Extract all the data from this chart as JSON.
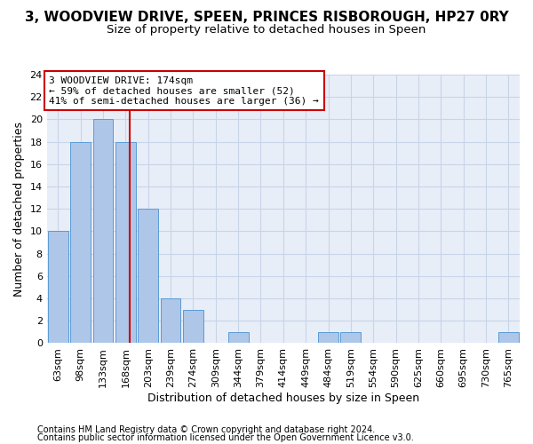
{
  "title": "3, WOODVIEW DRIVE, SPEEN, PRINCES RISBOROUGH, HP27 0RY",
  "subtitle": "Size of property relative to detached houses in Speen",
  "xlabel": "Distribution of detached houses by size in Speen",
  "ylabel": "Number of detached properties",
  "categories": [
    "63sqm",
    "98sqm",
    "133sqm",
    "168sqm",
    "203sqm",
    "239sqm",
    "274sqm",
    "309sqm",
    "344sqm",
    "379sqm",
    "414sqm",
    "449sqm",
    "484sqm",
    "519sqm",
    "554sqm",
    "590sqm",
    "625sqm",
    "660sqm",
    "695sqm",
    "730sqm",
    "765sqm"
  ],
  "values": [
    10,
    18,
    20,
    18,
    12,
    4,
    3,
    0,
    1,
    0,
    0,
    0,
    1,
    1,
    0,
    0,
    0,
    0,
    0,
    0,
    1
  ],
  "bar_color": "#aec6e8",
  "bar_edge_color": "#5b9bd5",
  "annotation_line1": "3 WOODVIEW DRIVE: 174sqm",
  "annotation_line2": "← 59% of detached houses are smaller (52)",
  "annotation_line3": "41% of semi-detached houses are larger (36) →",
  "annotation_box_color": "#ffffff",
  "annotation_box_edge_color": "#cc0000",
  "vline_color": "#cc0000",
  "vline_x_index": 3,
  "vline_x_offset": 0.17,
  "ylim": [
    0,
    24
  ],
  "yticks": [
    0,
    2,
    4,
    6,
    8,
    10,
    12,
    14,
    16,
    18,
    20,
    22,
    24
  ],
  "footer_line1": "Contains HM Land Registry data © Crown copyright and database right 2024.",
  "footer_line2": "Contains public sector information licensed under the Open Government Licence v3.0.",
  "bg_color": "#ffffff",
  "plot_bg_color": "#e8eef8",
  "grid_color": "#c8d4e8",
  "title_fontsize": 11,
  "subtitle_fontsize": 9.5,
  "xlabel_fontsize": 9,
  "ylabel_fontsize": 9,
  "tick_fontsize": 8,
  "annotation_fontsize": 8,
  "footer_fontsize": 7
}
